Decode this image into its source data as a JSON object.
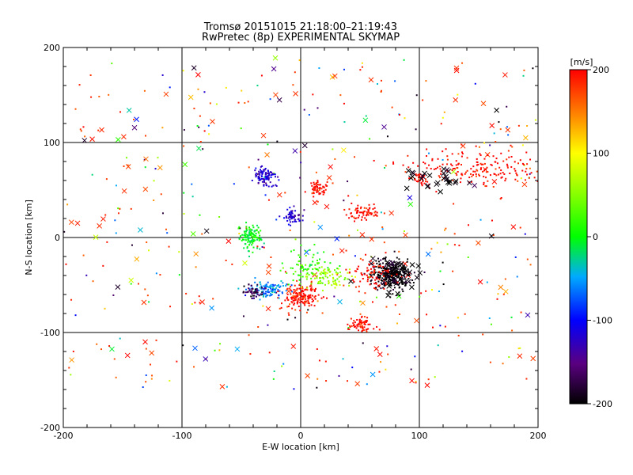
{
  "chart_data": {
    "type": "scatter",
    "title": "Tromsø 20151015 21:18:00–21:19:43",
    "subtitle": "RwPretec (8p) EXPERIMENTAL SKYMAP",
    "xlabel": "E-W location [km]",
    "ylabel": "N-S location [km]",
    "xlim": [
      -200,
      200
    ],
    "ylim": [
      -200,
      200
    ],
    "xticks": [
      "-200",
      "-100",
      "0",
      "100",
      "200"
    ],
    "yticks": [
      "-200",
      "-100",
      "0",
      "100",
      "200"
    ],
    "grid": true,
    "colorbar": {
      "label": "[m/s]",
      "range": [
        -200,
        200
      ],
      "ticks": [
        "200",
        "100",
        "0",
        "-100",
        "-200"
      ],
      "colormap": "rainbow (black-purple-blue-cyan-green-yellow-red)"
    },
    "clusters": [
      {
        "x": 77,
        "y": -40,
        "sx": 8,
        "sy": 8,
        "n": 320,
        "v": -200,
        "marker": "dot"
      },
      {
        "x": 80,
        "y": -40,
        "sx": 12,
        "sy": 8,
        "n": 40,
        "v": -200,
        "marker": "x"
      },
      {
        "x": 0,
        "y": -62,
        "sx": 8,
        "sy": 6,
        "n": 160,
        "v": 200,
        "marker": "dot"
      },
      {
        "x": -28,
        "y": -55,
        "sx": 7,
        "sy": 5,
        "n": 110,
        "v": -60,
        "marker": "dot"
      },
      {
        "x": -40,
        "y": -58,
        "sx": 5,
        "sy": 4,
        "n": 50,
        "v": -170,
        "marker": "dot"
      },
      {
        "x": -42,
        "y": 0,
        "sx": 4,
        "sy": 6,
        "n": 120,
        "v": 0,
        "marker": "dot"
      },
      {
        "x": -30,
        "y": 65,
        "sx": 5,
        "sy": 6,
        "n": 100,
        "v": -120,
        "marker": "dot"
      },
      {
        "x": -7,
        "y": 22,
        "sx": 4,
        "sy": 4,
        "n": 60,
        "v": -120,
        "marker": "dot"
      },
      {
        "x": 15,
        "y": 52,
        "sx": 4,
        "sy": 3,
        "n": 55,
        "v": 200,
        "marker": "dot"
      },
      {
        "x": 52,
        "y": 26,
        "sx": 6,
        "sy": 5,
        "n": 70,
        "v": 200,
        "marker": "dot"
      },
      {
        "x": 50,
        "y": -92,
        "sx": 5,
        "sy": 5,
        "n": 70,
        "v": 200,
        "marker": "dot"
      },
      {
        "x": 22,
        "y": -42,
        "sx": 10,
        "sy": 6,
        "n": 90,
        "v": 60,
        "marker": "dot"
      },
      {
        "x": 5,
        "y": -30,
        "sx": 10,
        "sy": 10,
        "n": 70,
        "v": 20,
        "marker": "dot"
      },
      {
        "x": 150,
        "y": 72,
        "sx": 30,
        "sy": 10,
        "n": 190,
        "v": 200,
        "marker": "dot"
      },
      {
        "x": 60,
        "y": -38,
        "sx": 8,
        "sy": 8,
        "n": 70,
        "v": 200,
        "marker": "dot"
      },
      {
        "x": 100,
        "y": 62,
        "sx": 3,
        "sy": 4,
        "n": 35,
        "v": 200,
        "marker": "dot"
      },
      {
        "x": 115,
        "y": 60,
        "sx": 14,
        "sy": 8,
        "n": 30,
        "v": -200,
        "marker": "x"
      }
    ],
    "scatter_field": {
      "n_points": 380,
      "n_crosses": 120,
      "x_range": [
        -200,
        200
      ],
      "y_range": [
        -160,
        190
      ]
    }
  }
}
